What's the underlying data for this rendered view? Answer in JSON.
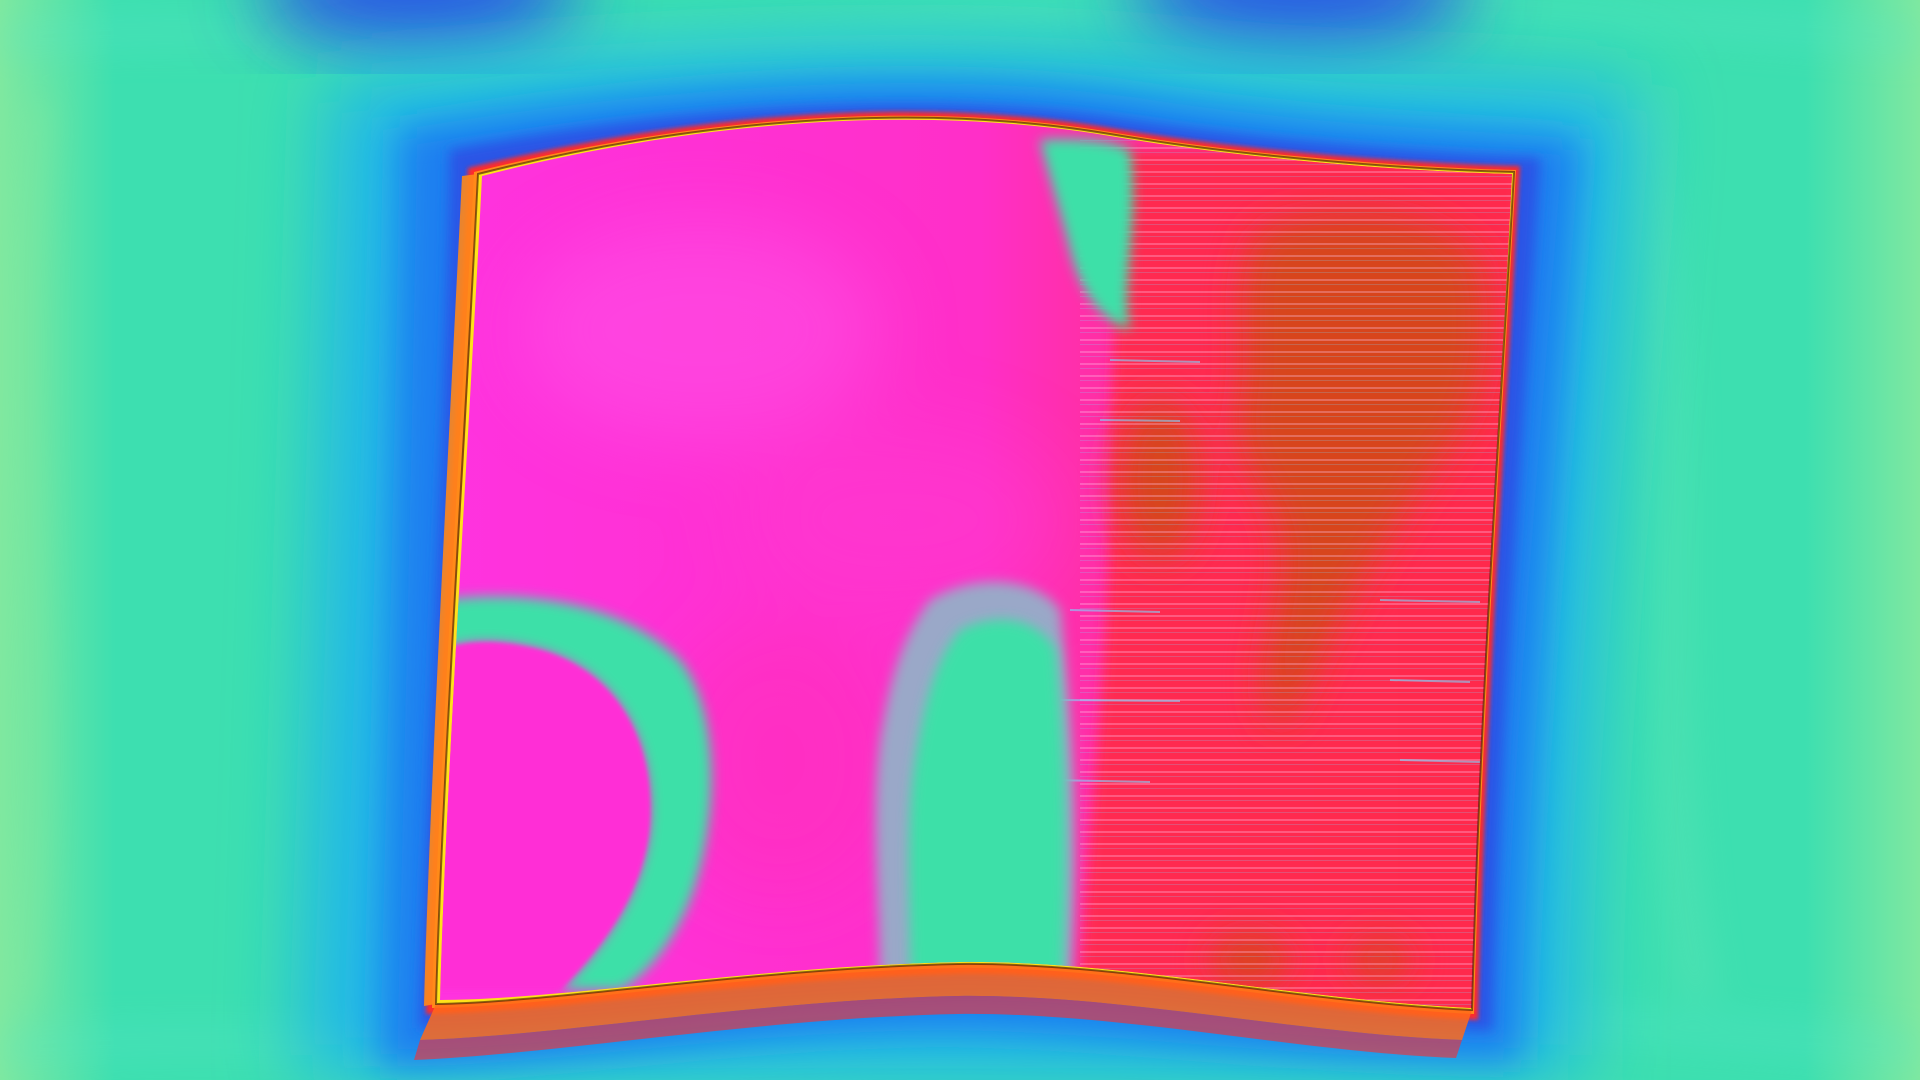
{
  "image": {
    "kind": "false-color thermal-style render of a warped square slab",
    "palette": {
      "background": "#3ddfb0",
      "background_band": "#5ae8c8",
      "halo_outer": "#23b7e8",
      "halo_mid": "#1f7ff0",
      "halo_inner": "#2a55e6",
      "rim_outer": "#ff2b2b",
      "rim_mid": "#ff8a1a",
      "rim_inner": "#ffe21a",
      "surface_main": "#ff2fd6",
      "surface_pink": "#ff3aa8",
      "surface_red": "#ff2a4a",
      "hot_core": "#d8451e",
      "cool_patch": "#3ee0a8",
      "cool_patch_edge": "#9aa8c8",
      "streak_light": "#ffc3e6",
      "streak_blue": "#7fd6ff"
    }
  }
}
